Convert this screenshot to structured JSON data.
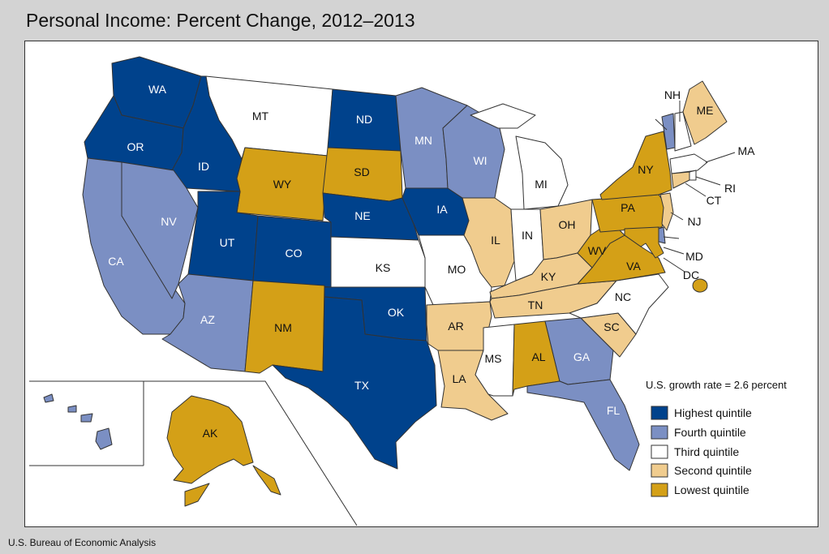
{
  "title": "Personal Income: Percent Change, 2012–2013",
  "source": "U.S. Bureau of Economic Analysis",
  "legend": {
    "note": "U.S. growth rate = 2.6 percent",
    "items": [
      {
        "label": "Highest quintile",
        "color": "#00428c"
      },
      {
        "label": "Fourth quintile",
        "color": "#7b8fc3"
      },
      {
        "label": "Third quintile",
        "color": "#ffffff"
      },
      {
        "label": "Second quintile",
        "color": "#f0cc8e"
      },
      {
        "label": "Lowest quintile",
        "color": "#d4a017"
      }
    ]
  },
  "states": {
    "WA": "Highest quintile",
    "OR": "Highest quintile",
    "ID": "Highest quintile",
    "UT": "Highest quintile",
    "CO": "Highest quintile",
    "ND": "Highest quintile",
    "NE": "Highest quintile",
    "IA": "Highest quintile",
    "OK": "Highest quintile",
    "TX": "Highest quintile",
    "CA": "Fourth quintile",
    "NV": "Fourth quintile",
    "AZ": "Fourth quintile",
    "MN": "Fourth quintile",
    "WI": "Fourth quintile",
    "GA": "Fourth quintile",
    "FL": "Fourth quintile",
    "HI": "Fourth quintile",
    "VT": "Fourth quintile",
    "DE": "Fourth quintile",
    "MT": "Third quintile",
    "KS": "Third quintile",
    "MO": "Third quintile",
    "MI": "Third quintile",
    "IN": "Third quintile",
    "MS": "Third quintile",
    "NC": "Third quintile",
    "NH": "Third quintile",
    "MA": "Third quintile",
    "RI": "Third quintile",
    "IL": "Second quintile",
    "OH": "Second quintile",
    "KY": "Second quintile",
    "TN": "Second quintile",
    "AR": "Second quintile",
    "LA": "Second quintile",
    "SC": "Second quintile",
    "ME": "Second quintile",
    "CT": "Second quintile",
    "NJ": "Second quintile",
    "WY": "Lowest quintile",
    "SD": "Lowest quintile",
    "NM": "Lowest quintile",
    "AL": "Lowest quintile",
    "WV": "Lowest quintile",
    "VA": "Lowest quintile",
    "PA": "Lowest quintile",
    "NY": "Lowest quintile",
    "MD": "Lowest quintile",
    "AK": "Lowest quintile",
    "DC": "Lowest quintile"
  }
}
